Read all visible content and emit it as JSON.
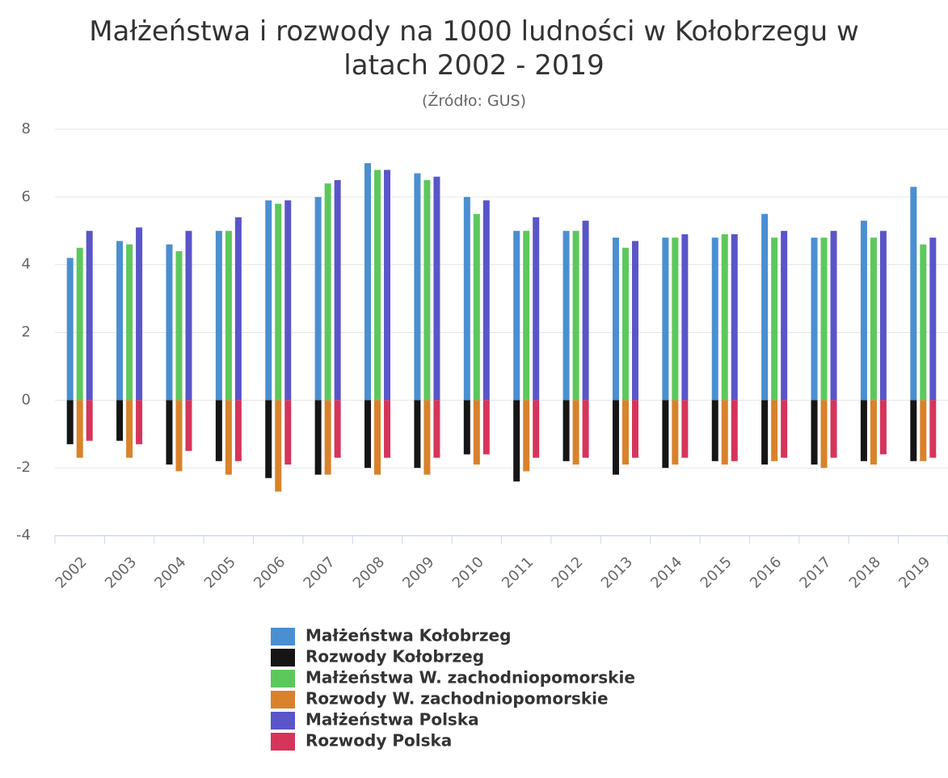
{
  "chart_data": {
    "type": "bar",
    "title": "Małżeństwa i rozwody na 1000 ludności w Kołobrzegu w latach 2002 - 2019",
    "subtitle": "(Źródło: GUS)",
    "categories": [
      "2002",
      "2003",
      "2004",
      "2005",
      "2006",
      "2007",
      "2008",
      "2009",
      "2010",
      "2011",
      "2012",
      "2013",
      "2014",
      "2015",
      "2016",
      "2017",
      "2018",
      "2019"
    ],
    "series": [
      {
        "name": "Małżeństwa Kołobrzeg",
        "color": "#4a8fd1",
        "values": [
          4.2,
          4.7,
          4.6,
          5.0,
          5.9,
          6.0,
          7.0,
          6.7,
          6.0,
          5.0,
          5.0,
          4.8,
          4.8,
          4.8,
          5.5,
          4.8,
          5.3,
          6.3
        ]
      },
      {
        "name": "Rozwody Kołobrzeg",
        "color": "#151515",
        "values": [
          -1.3,
          -1.2,
          -1.9,
          -1.8,
          -2.3,
          -2.2,
          -2.0,
          -2.0,
          -1.6,
          -2.4,
          -1.8,
          -2.2,
          -2.0,
          -1.8,
          -1.9,
          -1.9,
          -1.8,
          -1.8
        ]
      },
      {
        "name": "Małżeństwa W. zachodniopomorskie",
        "color": "#5cc85c",
        "values": [
          4.5,
          4.6,
          4.4,
          5.0,
          5.8,
          6.4,
          6.8,
          6.5,
          5.5,
          5.0,
          5.0,
          4.5,
          4.8,
          4.9,
          4.8,
          4.8,
          4.8,
          4.6
        ]
      },
      {
        "name": "Rozwody W. zachodniopomorskie",
        "color": "#d9822b",
        "values": [
          -1.7,
          -1.7,
          -2.1,
          -2.2,
          -2.7,
          -2.2,
          -2.2,
          -2.2,
          -1.9,
          -2.1,
          -1.9,
          -1.9,
          -1.9,
          -1.9,
          -1.8,
          -2.0,
          -1.9,
          -1.8
        ]
      },
      {
        "name": "Małżeństwa Polska",
        "color": "#5a55c8",
        "values": [
          5.0,
          5.1,
          5.0,
          5.4,
          5.9,
          6.5,
          6.8,
          6.6,
          5.9,
          5.4,
          5.3,
          4.7,
          4.9,
          4.9,
          5.0,
          5.0,
          5.0,
          4.8
        ]
      },
      {
        "name": "Rozwody Polska",
        "color": "#d6345a",
        "values": [
          -1.2,
          -1.3,
          -1.5,
          -1.8,
          -1.9,
          -1.7,
          -1.7,
          -1.7,
          -1.6,
          -1.7,
          -1.7,
          -1.7,
          -1.7,
          -1.8,
          -1.7,
          -1.7,
          -1.6,
          -1.7
        ]
      }
    ],
    "ylim": [
      -4,
      8
    ],
    "yticks": [
      8,
      6,
      4,
      2,
      0,
      -2,
      -4
    ],
    "grid": true
  }
}
